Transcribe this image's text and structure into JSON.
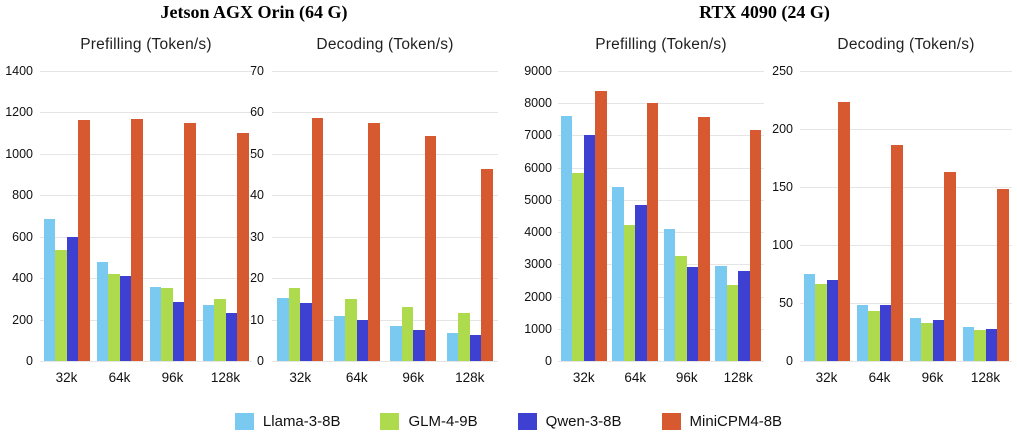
{
  "figure": {
    "background": "#ffffff",
    "gridline_color": "#e5e5e5"
  },
  "groups": [
    {
      "title": "Jetson AGX Orin (64 G)"
    },
    {
      "title": "RTX 4090 (24 G)"
    }
  ],
  "legend": [
    {
      "label": "Llama-3-8B",
      "color": "#79C9F0"
    },
    {
      "label": "GLM-4-9B",
      "color": "#AEDB4E"
    },
    {
      "label": "Qwen-3-8B",
      "color": "#3D40D0"
    },
    {
      "label": "MiniCPM4-8B",
      "color": "#D6592F"
    }
  ],
  "chart_data": [
    {
      "type": "bar",
      "title": "Prefilling (Token/s)",
      "device": "Jetson AGX Orin (64 G)",
      "categories": [
        "32k",
        "64k",
        "96k",
        "128k"
      ],
      "series": [
        {
          "name": "Llama-3-8B",
          "color": "#79C9F0",
          "values": [
            685,
            480,
            355,
            270
          ]
        },
        {
          "name": "GLM-4-9B",
          "color": "#AEDB4E",
          "values": [
            535,
            422,
            352,
            297
          ]
        },
        {
          "name": "Qwen-3-8B",
          "color": "#3D40D0",
          "values": [
            598,
            409,
            284,
            231
          ]
        },
        {
          "name": "MiniCPM4-8B",
          "color": "#D6592F",
          "values": [
            1162,
            1168,
            1148,
            1101
          ]
        }
      ],
      "ylim": [
        0,
        1400
      ],
      "yticks": [
        0,
        200,
        400,
        600,
        800,
        1000,
        1200,
        1400
      ],
      "grid": true,
      "legend_position": "bottom-shared"
    },
    {
      "type": "bar",
      "title": "Decoding (Token/s)",
      "device": "Jetson AGX Orin (64 G)",
      "categories": [
        "32k",
        "64k",
        "96k",
        "128k"
      ],
      "series": [
        {
          "name": "Llama-3-8B",
          "color": "#79C9F0",
          "values": [
            15.2,
            10.9,
            8.4,
            6.8
          ]
        },
        {
          "name": "GLM-4-9B",
          "color": "#AEDB4E",
          "values": [
            17.7,
            14.9,
            13.1,
            11.5
          ]
        },
        {
          "name": "Qwen-3-8B",
          "color": "#3D40D0",
          "values": [
            14.1,
            9.9,
            7.6,
            6.2
          ]
        },
        {
          "name": "MiniCPM4-8B",
          "color": "#D6592F",
          "values": [
            58.6,
            57.4,
            54.4,
            46.4
          ]
        }
      ],
      "ylim": [
        0,
        70
      ],
      "yticks": [
        0,
        10,
        20,
        30,
        40,
        50,
        60,
        70
      ],
      "grid": true,
      "legend_position": "bottom-shared"
    },
    {
      "type": "bar",
      "title": "Prefilling (Token/s)",
      "device": "RTX 4090 (24 G)",
      "categories": [
        "32k",
        "64k",
        "96k",
        "128k"
      ],
      "series": [
        {
          "name": "Llama-3-8B",
          "color": "#79C9F0",
          "values": [
            7590,
            5390,
            4100,
            2940
          ]
        },
        {
          "name": "GLM-4-9B",
          "color": "#AEDB4E",
          "values": [
            5840,
            4220,
            3260,
            2360
          ]
        },
        {
          "name": "Qwen-3-8B",
          "color": "#3D40D0",
          "values": [
            7020,
            4830,
            2920,
            2800
          ]
        },
        {
          "name": "MiniCPM4-8B",
          "color": "#D6592F",
          "values": [
            8380,
            8020,
            7560,
            7180
          ]
        }
      ],
      "ylim": [
        0,
        9000
      ],
      "yticks": [
        0,
        1000,
        2000,
        3000,
        4000,
        5000,
        6000,
        7000,
        8000,
        9000
      ],
      "grid": true,
      "legend_position": "bottom-shared"
    },
    {
      "type": "bar",
      "title": "Decoding (Token/s)",
      "device": "RTX 4090 (24 G)",
      "categories": [
        "32k",
        "64k",
        "96k",
        "128k"
      ],
      "series": [
        {
          "name": "Llama-3-8B",
          "color": "#79C9F0",
          "values": [
            75,
            48,
            37,
            29
          ]
        },
        {
          "name": "GLM-4-9B",
          "color": "#AEDB4E",
          "values": [
            66,
            43,
            33,
            27
          ]
        },
        {
          "name": "Qwen-3-8B",
          "color": "#3D40D0",
          "values": [
            70,
            48,
            35,
            28
          ]
        },
        {
          "name": "MiniCPM4-8B",
          "color": "#D6592F",
          "values": [
            223,
            186,
            163,
            148
          ]
        }
      ],
      "ylim": [
        0,
        250
      ],
      "yticks": [
        0,
        50,
        100,
        150,
        200,
        250
      ],
      "grid": true,
      "legend_position": "bottom-shared"
    }
  ]
}
